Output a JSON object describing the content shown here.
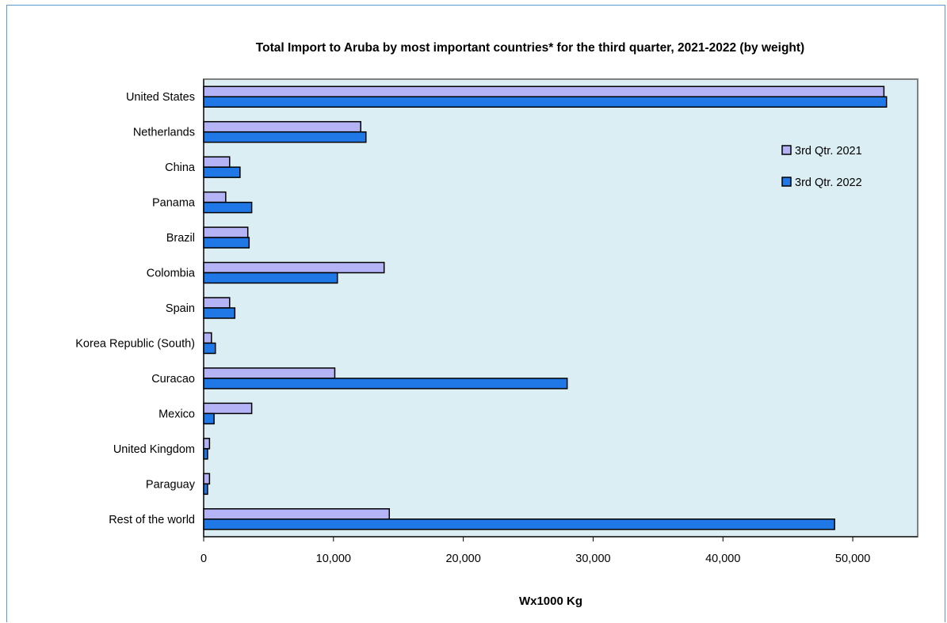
{
  "chart_data": {
    "type": "bar",
    "orientation": "horizontal",
    "title": "Total Import to Aruba by most important countries* for the third quarter, 2021-2022 (by weight)",
    "xlabel": "Wx1000 Kg",
    "ylabel": "",
    "categories": [
      "United States",
      "Netherlands",
      "China",
      "Panama",
      "Brazil",
      "Colombia",
      "Spain",
      "Korea Republic (South)",
      "Curacao",
      "Mexico",
      "United Kingdom",
      "Paraguay",
      "Rest of the world"
    ],
    "series": [
      {
        "name": "3rd Qtr. 2021",
        "color": "#b3b3f5",
        "values": [
          52400,
          12100,
          2000,
          1700,
          3400,
          13900,
          2000,
          600,
          10100,
          3700,
          450,
          450,
          14300
        ]
      },
      {
        "name": "3rd Qtr. 2022",
        "color": "#1f78e6",
        "values": [
          52600,
          12500,
          2800,
          3700,
          3500,
          10300,
          2400,
          900,
          28000,
          800,
          300,
          300,
          48600
        ]
      }
    ],
    "xlim": [
      0,
      55000
    ],
    "xticks": [
      0,
      10000,
      20000,
      30000,
      40000,
      50000
    ],
    "xtick_labels": [
      "0",
      "10,000",
      "20,000",
      "30,000",
      "40,000",
      "50,000"
    ],
    "plot_background": "#dbeef3",
    "grid": false,
    "legend_position": "top-right"
  }
}
